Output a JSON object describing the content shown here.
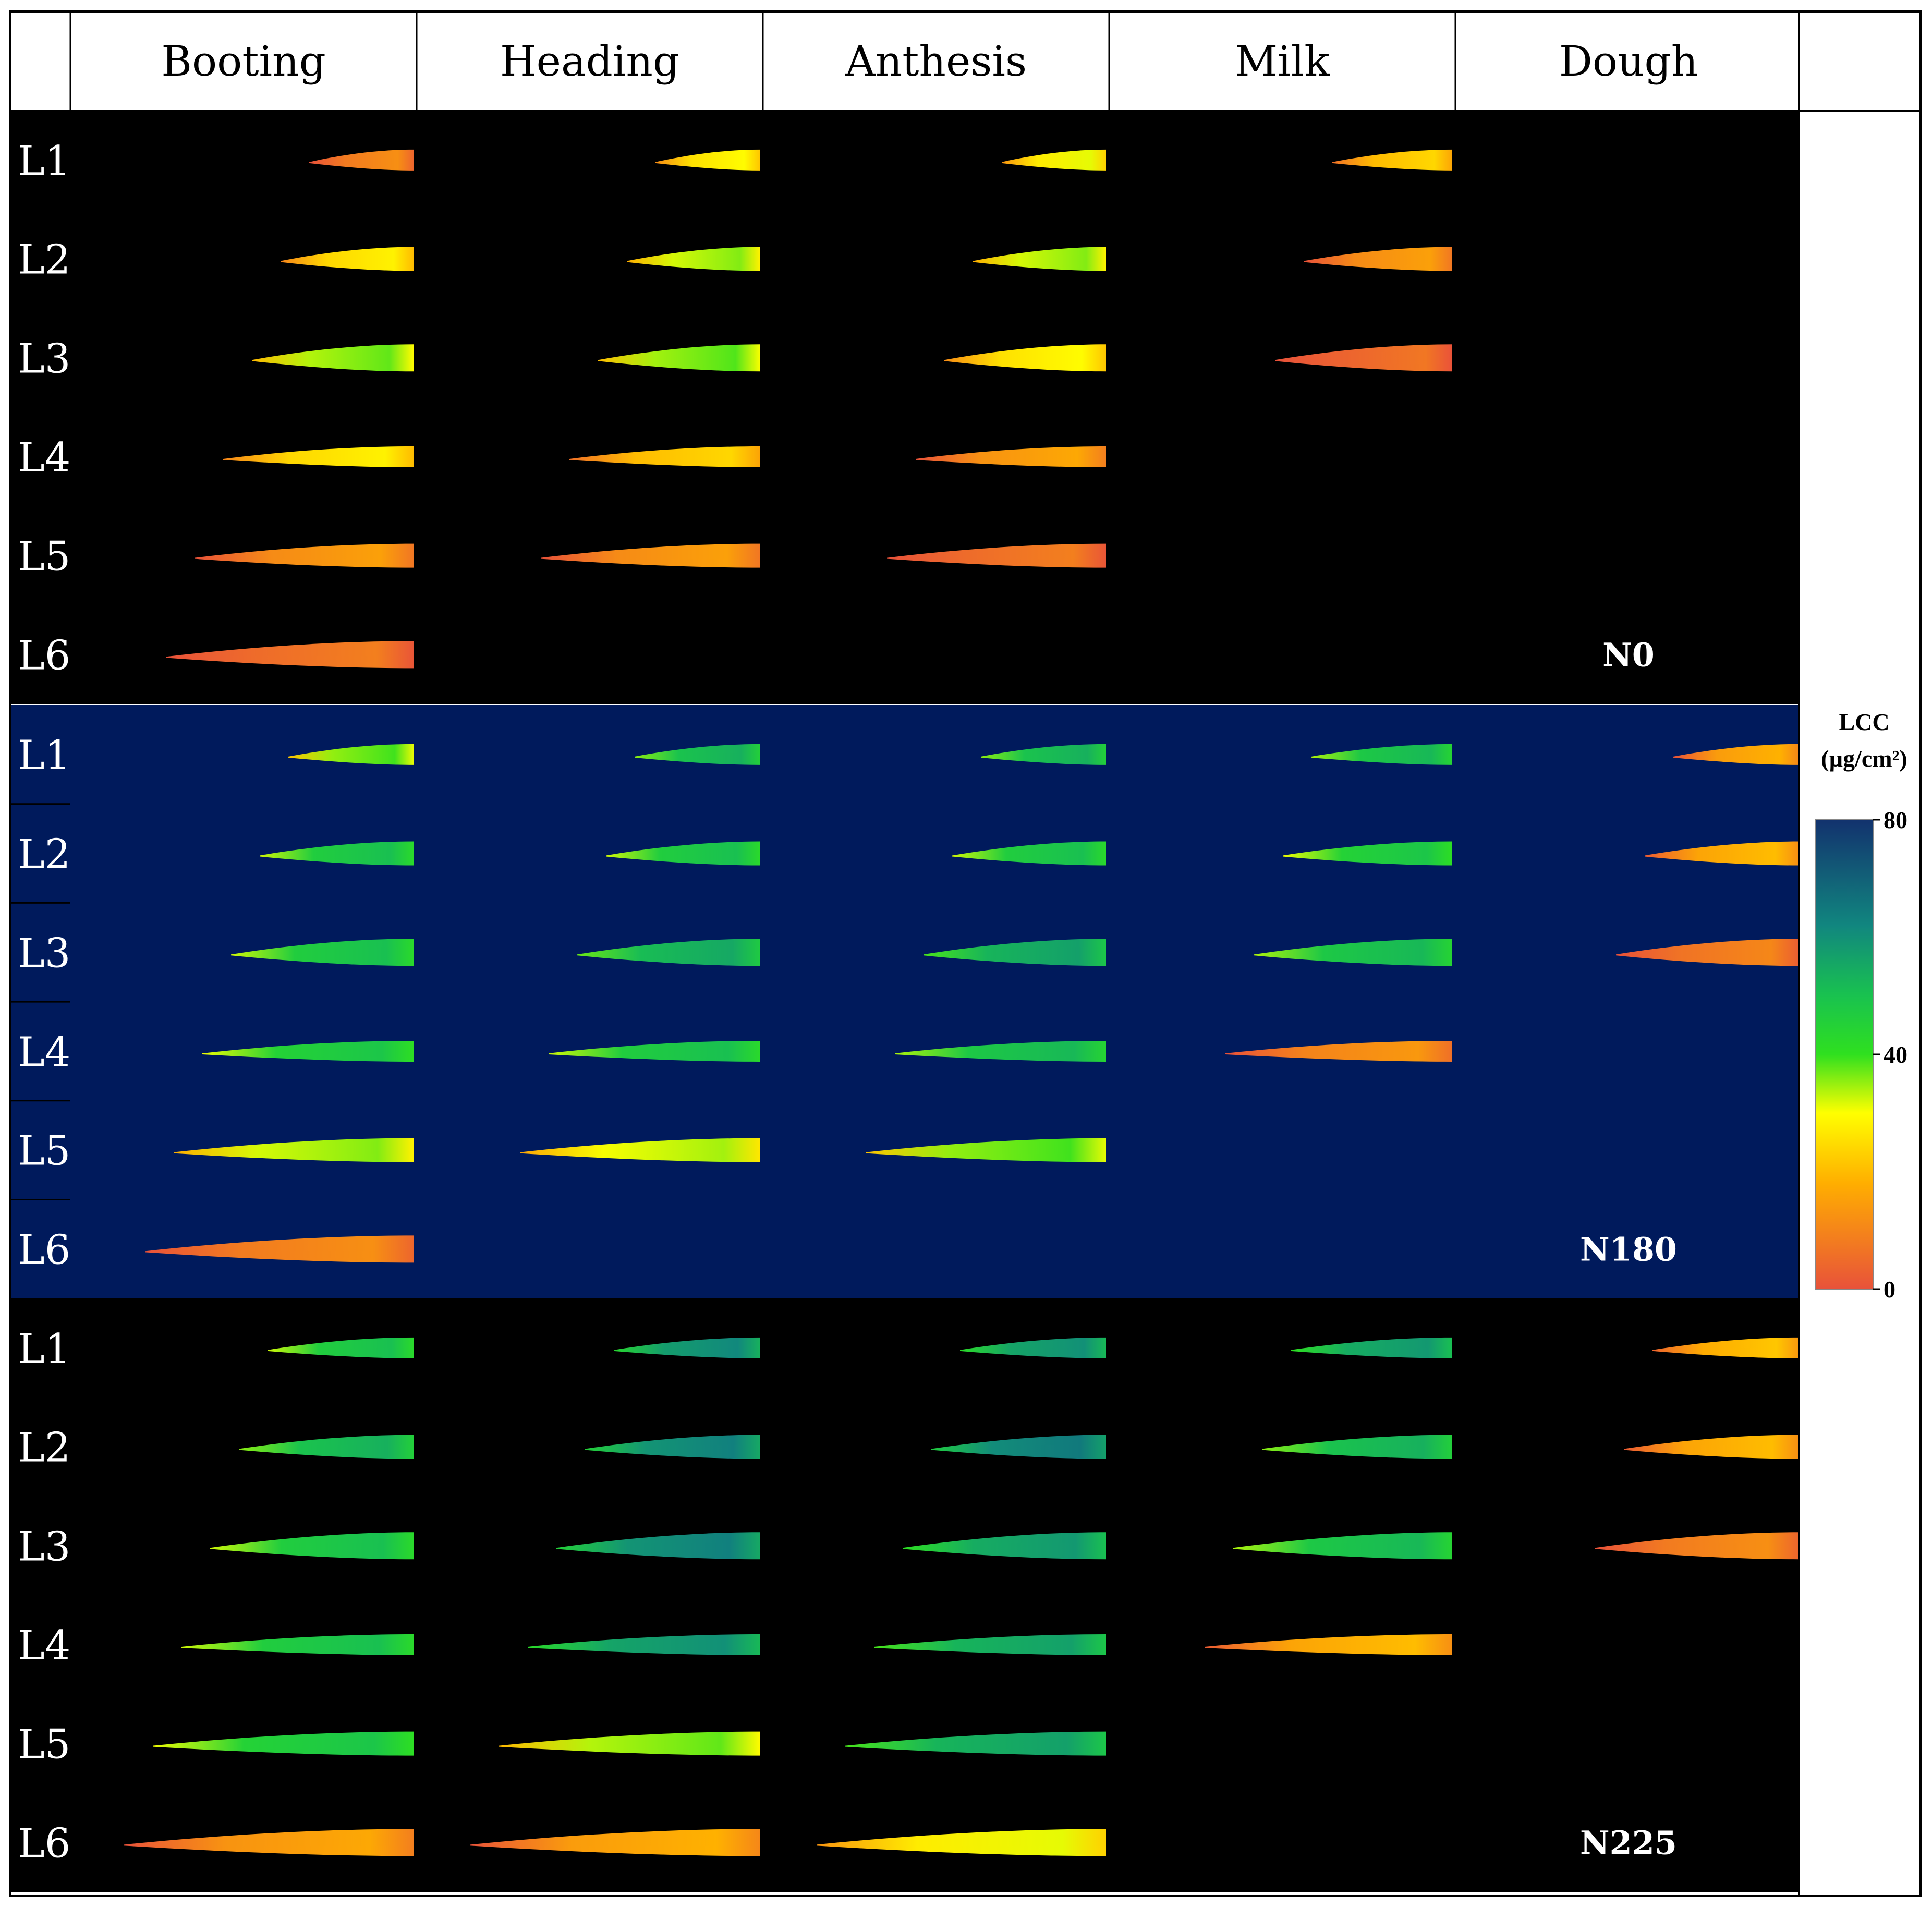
{
  "figure": {
    "stages": [
      "Booting",
      "Heading",
      "Anthesis",
      "Milk",
      "Dough"
    ],
    "leaf_labels": [
      "L1",
      "L2",
      "L3",
      "L4",
      "L5",
      "L6"
    ],
    "colorbar": {
      "title_line1": "LCC",
      "title_line2": "(µg/cm²)",
      "min": 0,
      "max": 80,
      "ticks": [
        "80",
        "40",
        "0"
      ],
      "stops": [
        {
          "value": 80,
          "color": "#12326e"
        },
        {
          "value": 62,
          "color": "#11867f"
        },
        {
          "value": 50,
          "color": "#19c24f"
        },
        {
          "value": 40,
          "color": "#2fe01f"
        },
        {
          "value": 30,
          "color": "#ffff00"
        },
        {
          "value": 18,
          "color": "#ffae00"
        },
        {
          "value": 0,
          "color": "#e8523a"
        }
      ]
    },
    "groups": [
      {
        "name": "N0",
        "background": "#000000",
        "leaves": [
          [
            0.1,
            0.32,
            0.34,
            0.25,
            null
          ],
          [
            0.3,
            0.4,
            0.4,
            0.14,
            null
          ],
          [
            0.42,
            0.43,
            0.32,
            0.04,
            null
          ],
          [
            0.3,
            0.25,
            0.16,
            null,
            null
          ],
          [
            0.14,
            0.14,
            0.06,
            null,
            null
          ],
          [
            0.06,
            null,
            null,
            null,
            null
          ]
        ]
      },
      {
        "name": "N180",
        "background": "#001a5c",
        "leaves": [
          [
            0.44,
            0.62,
            0.62,
            0.6,
            0.18
          ],
          [
            0.58,
            0.58,
            0.58,
            0.56,
            0.2
          ],
          [
            0.58,
            0.64,
            0.66,
            0.6,
            0.08
          ],
          [
            0.56,
            0.58,
            0.6,
            0.12,
            null
          ],
          [
            0.4,
            0.38,
            0.44,
            null,
            null
          ],
          [
            0.1,
            null,
            null,
            null,
            null
          ]
        ]
      },
      {
        "name": "N225",
        "background": "#000000",
        "leaves": [
          [
            0.58,
            0.72,
            0.7,
            0.68,
            0.22
          ],
          [
            0.62,
            0.74,
            0.76,
            0.62,
            0.2
          ],
          [
            0.58,
            0.74,
            0.68,
            0.6,
            0.1
          ],
          [
            0.58,
            0.7,
            0.66,
            0.2,
            null
          ],
          [
            0.56,
            0.42,
            0.66,
            null,
            null
          ],
          [
            0.16,
            0.18,
            0.34,
            null,
            null
          ]
        ]
      }
    ]
  }
}
